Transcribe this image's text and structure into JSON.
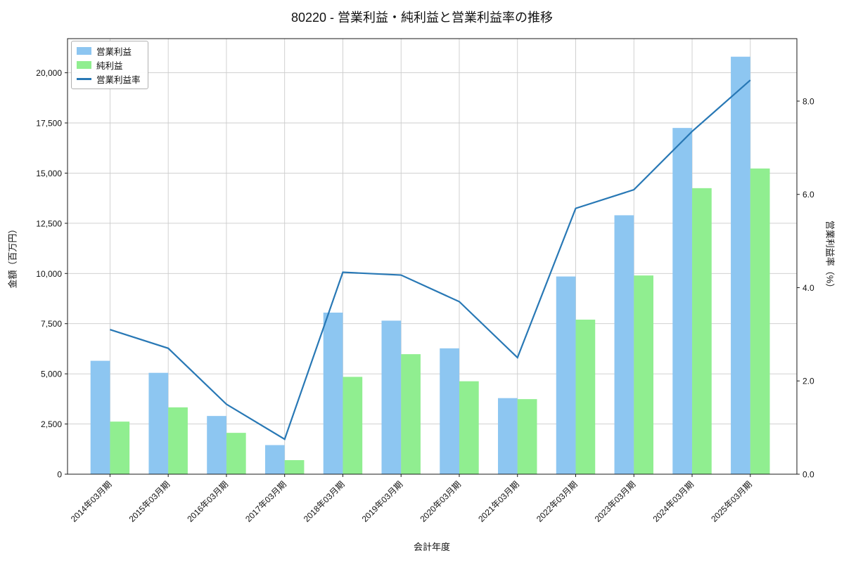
{
  "chart_data": {
    "type": "bar",
    "combo": "grouped-bars-with-line-dual-axis",
    "title": "80220 - 営業利益・純利益と営業利益率の推移",
    "xlabel": "会計年度",
    "ylabel_left": "金額（百万円）",
    "ylabel_right": "営業利益率（%）",
    "categories": [
      "2014年03月期",
      "2015年03月期",
      "2016年03月期",
      "2017年03月期",
      "2018年03月期",
      "2019年03月期",
      "2020年03月期",
      "2021年03月期",
      "2022年03月期",
      "2023年03月期",
      "2024年03月期",
      "2025年03月期"
    ],
    "series": [
      {
        "name": "営業利益",
        "type": "bar",
        "axis": "left",
        "color": "#8dc6f1",
        "values": [
          5650,
          5050,
          2900,
          1450,
          8050,
          7650,
          6270,
          3790,
          9850,
          12900,
          17250,
          20800
        ]
      },
      {
        "name": "純利益",
        "type": "bar",
        "axis": "left",
        "color": "#90ee90",
        "values": [
          2620,
          3330,
          2060,
          700,
          4850,
          5980,
          4630,
          3740,
          7700,
          9900,
          14250,
          15230
        ]
      },
      {
        "name": "営業利益率",
        "type": "line",
        "axis": "right",
        "color": "#2878b5",
        "values": [
          3.1,
          2.7,
          1.5,
          0.75,
          4.33,
          4.27,
          3.7,
          2.5,
          5.7,
          6.1,
          7.35,
          8.45
        ]
      }
    ],
    "left_axis": {
      "ticks": [
        0,
        2500,
        5000,
        7500,
        10000,
        12500,
        15000,
        17500,
        20000
      ],
      "range": [
        0,
        21700
      ]
    },
    "right_axis": {
      "ticks": [
        0,
        2,
        4,
        6,
        8
      ],
      "range": [
        0,
        9.34
      ]
    },
    "grid": true,
    "legend_position": "upper-left"
  }
}
